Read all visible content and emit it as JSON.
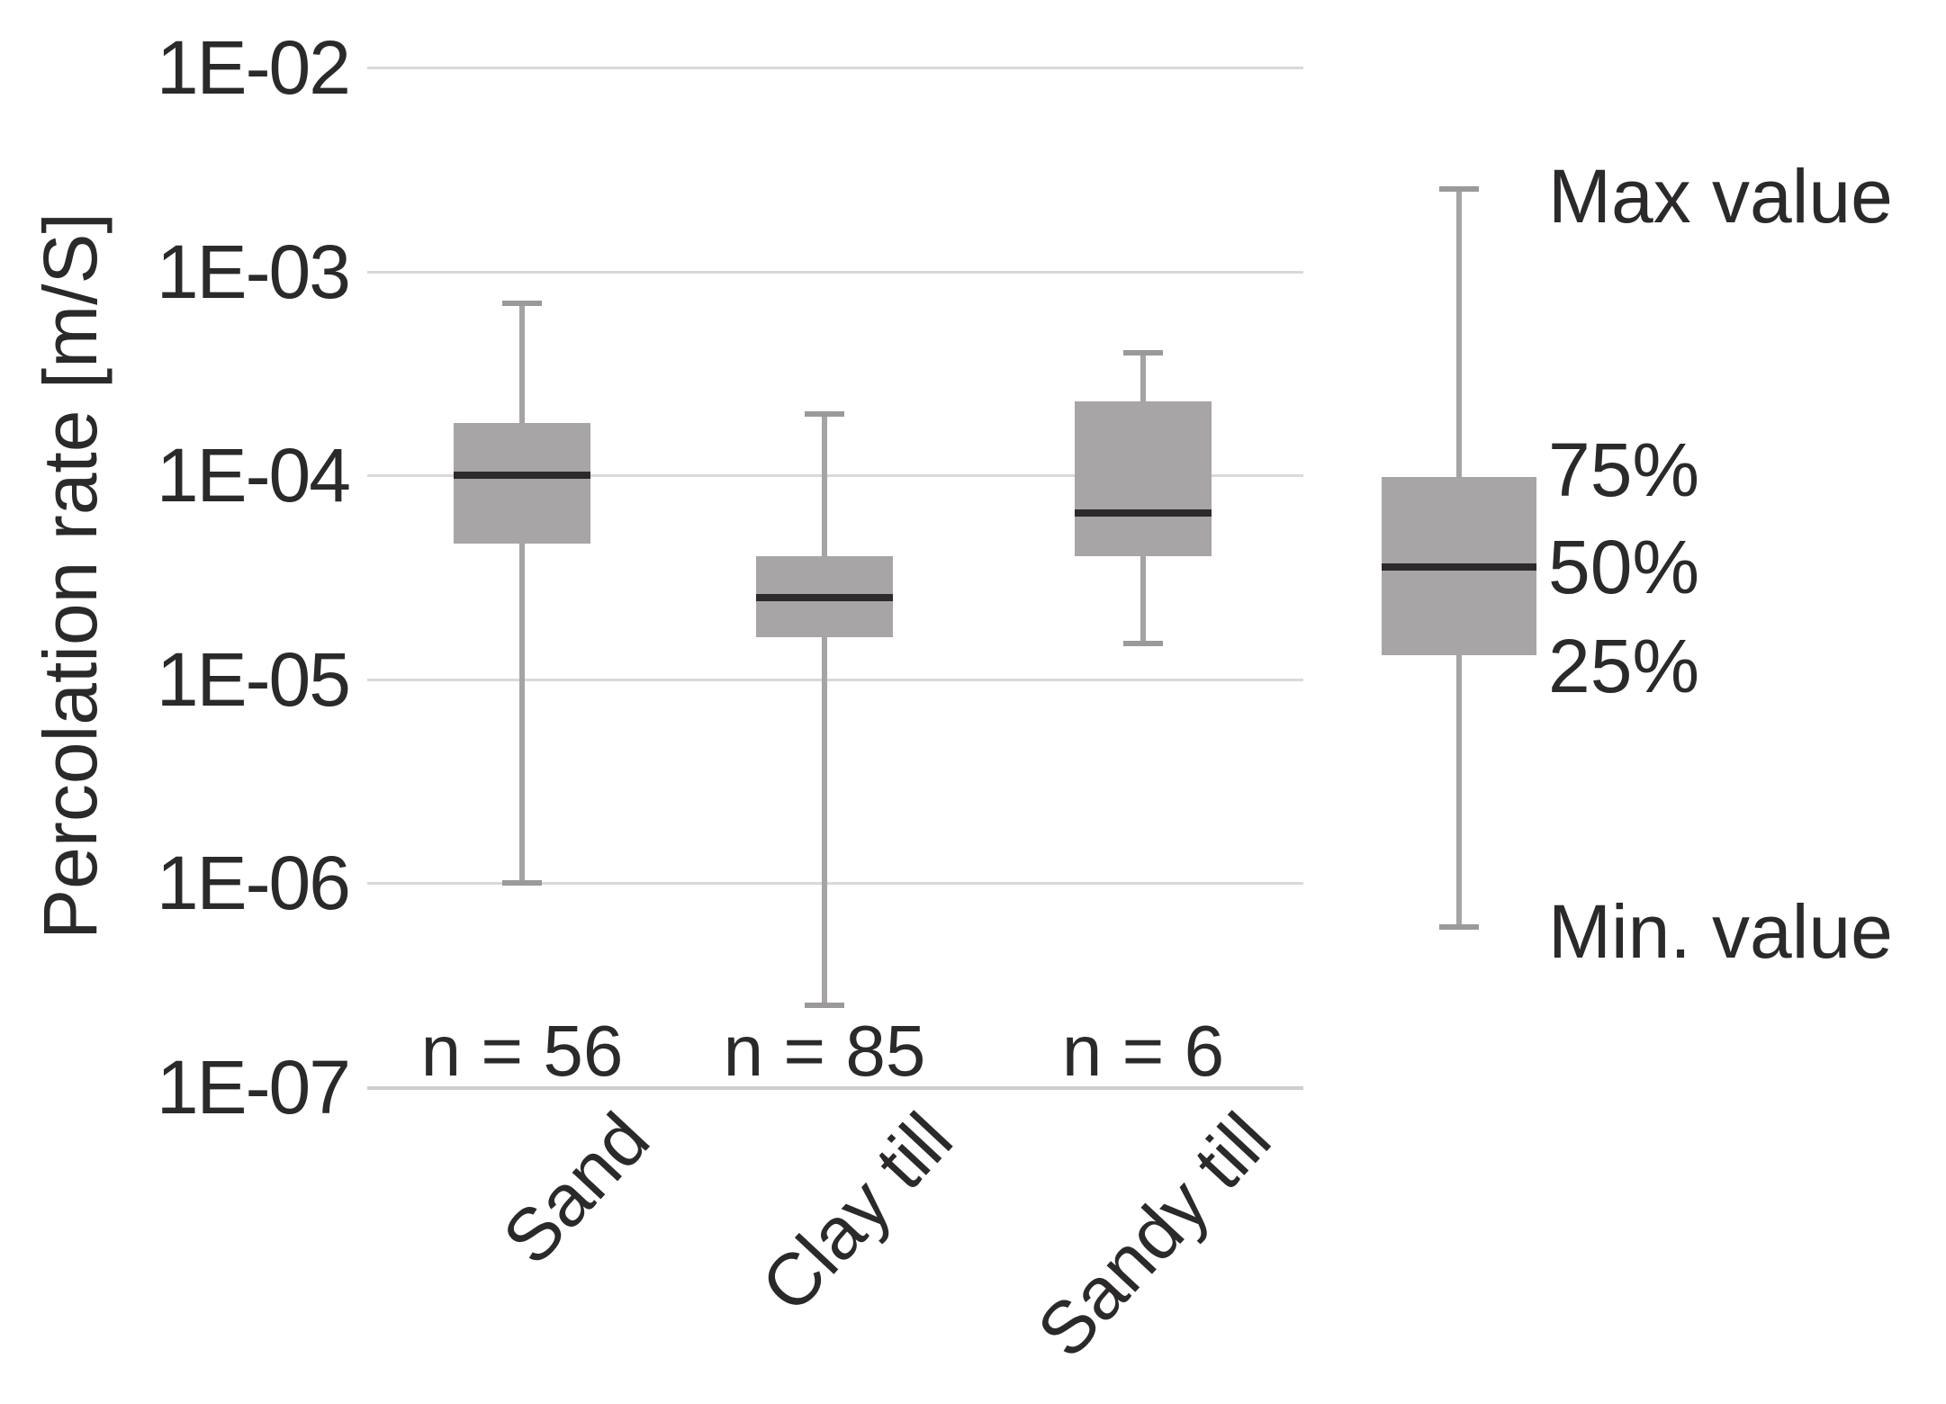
{
  "colors": {
    "background": "#ffffff",
    "box_fill": "#a7a5a6",
    "whisker": "#a5a3a4",
    "whisker_cap": "#9b999a",
    "median": "#2c2a2b",
    "gridline": "#d9d9d9",
    "text": "#2b292a"
  },
  "chart_data": {
    "type": "boxplot",
    "title": "",
    "xlabel": "",
    "ylabel": "Percolation rate [m/S]",
    "y_scale": "log",
    "ylim": [
      1e-07,
      0.01
    ],
    "grid": "horizontal",
    "y_ticks": [
      {
        "label": "1E-02",
        "value": 0.01
      },
      {
        "label": "1E-03",
        "value": 0.001
      },
      {
        "label": "1E-04",
        "value": 0.0001
      },
      {
        "label": "1E-05",
        "value": 1e-05
      },
      {
        "label": "1E-06",
        "value": 1e-06
      },
      {
        "label": "1E-07",
        "value": 1e-07
      }
    ],
    "series": [
      {
        "category": "Sand",
        "n": 56,
        "n_label": "n = 56",
        "min": 1e-06,
        "q1": 4.6e-05,
        "median": 0.0001,
        "q3": 0.00018,
        "max": 0.0007
      },
      {
        "category": "Clay till",
        "n": 85,
        "n_label": "n = 85",
        "min": 2.5e-07,
        "q1": 1.6e-05,
        "median": 2.5e-05,
        "q3": 4e-05,
        "max": 0.0002
      },
      {
        "category": "Sandy till",
        "n": 6,
        "n_label": "n = 6",
        "min": 1.5e-05,
        "q1": 4e-05,
        "median": 6.5e-05,
        "q3": 0.00023,
        "max": 0.0004
      }
    ],
    "legend": {
      "max_label": "Max value",
      "q3_label": "75%",
      "median_label": "50%",
      "q1_label": "25%",
      "min_label": "Min. value"
    }
  }
}
